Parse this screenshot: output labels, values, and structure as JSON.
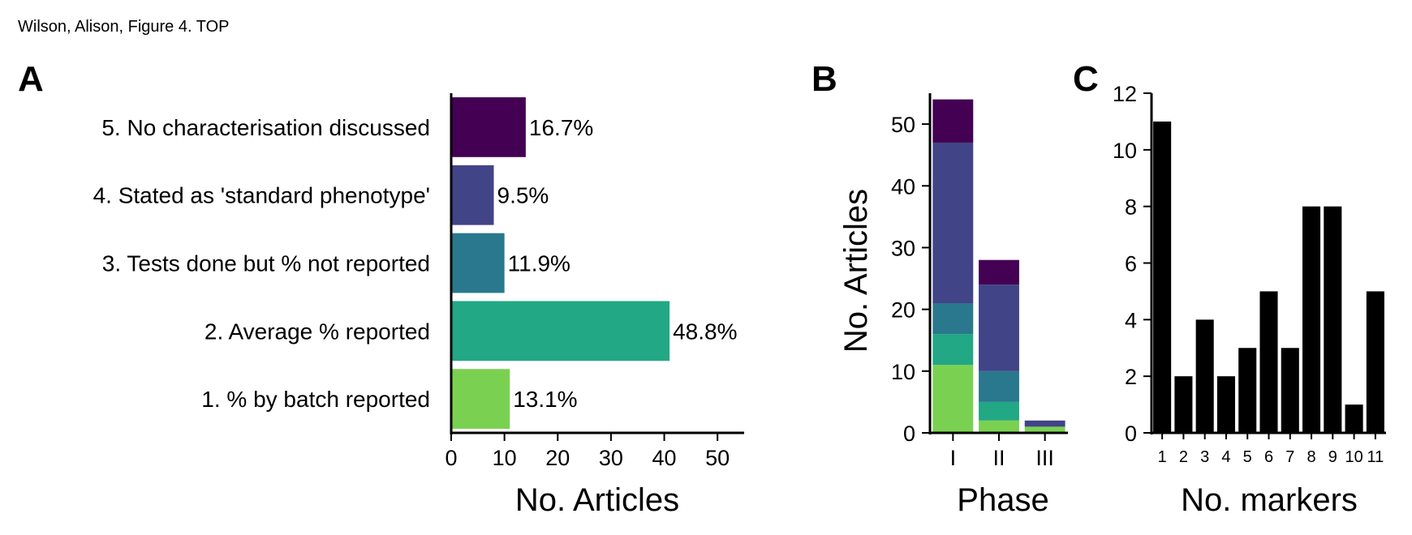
{
  "header": "Wilson, Alison, Figure 4. TOP",
  "chart_data": [
    {
      "panel": "A",
      "type": "bar",
      "orientation": "horizontal",
      "categories": [
        "1. % by batch reported",
        "2. Average % reported",
        "3. Tests done but % not reported",
        "4. Stated as 'standard phenotype'",
        "5. No characterisation discussed"
      ],
      "values": [
        11,
        41,
        10,
        8,
        14
      ],
      "data_labels": [
        "13.1%",
        "48.8%",
        "11.9%",
        "9.5%",
        "16.7%"
      ],
      "colors": [
        "#7ad151",
        "#22a884",
        "#2a788e",
        "#414487",
        "#440154"
      ],
      "xlabel": "No. Articles",
      "ylabel": "",
      "xlim": [
        0,
        55
      ],
      "xticks": [
        0,
        10,
        20,
        30,
        40,
        50
      ]
    },
    {
      "panel": "B",
      "type": "bar",
      "stacked": true,
      "categories": [
        "I",
        "II",
        "III"
      ],
      "series": [
        {
          "color": "#7ad151",
          "values": [
            11,
            2,
            1
          ]
        },
        {
          "color": "#22a884",
          "values": [
            5,
            3,
            0
          ]
        },
        {
          "color": "#2a788e",
          "values": [
            5,
            5,
            0
          ]
        },
        {
          "color": "#414487",
          "values": [
            26,
            14,
            1
          ]
        },
        {
          "color": "#440154",
          "values": [
            7,
            4,
            0
          ]
        }
      ],
      "xlabel": "Phase",
      "ylabel": "No. Articles",
      "ylim": [
        0,
        55
      ],
      "yticks": [
        0,
        10,
        20,
        30,
        40,
        50
      ]
    },
    {
      "panel": "C",
      "type": "bar",
      "categories": [
        "1",
        "2",
        "3",
        "4",
        "5",
        "6",
        "7",
        "8",
        "9",
        "10",
        "11"
      ],
      "values": [
        11,
        2,
        4,
        2,
        3,
        5,
        3,
        8,
        8,
        1,
        5
      ],
      "color": "#000000",
      "xlabel": "No. markers",
      "ylabel": "",
      "ylim": [
        0,
        12
      ],
      "yticks": [
        0,
        2,
        4,
        6,
        8,
        10,
        12
      ]
    }
  ]
}
